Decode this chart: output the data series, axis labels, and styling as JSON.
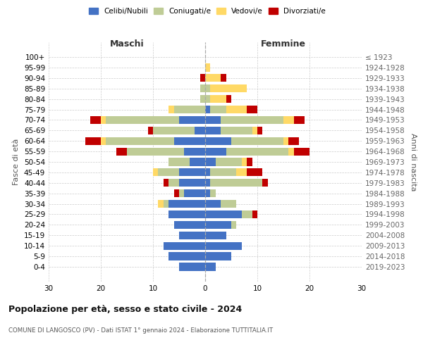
{
  "age_groups": [
    "100+",
    "95-99",
    "90-94",
    "85-89",
    "80-84",
    "75-79",
    "70-74",
    "65-69",
    "60-64",
    "55-59",
    "50-54",
    "45-49",
    "40-44",
    "35-39",
    "30-34",
    "25-29",
    "20-24",
    "15-19",
    "10-14",
    "5-9",
    "0-4"
  ],
  "birth_years": [
    "≤ 1923",
    "1924-1928",
    "1929-1933",
    "1934-1938",
    "1939-1943",
    "1944-1948",
    "1949-1953",
    "1954-1958",
    "1959-1963",
    "1964-1968",
    "1969-1973",
    "1974-1978",
    "1979-1983",
    "1984-1988",
    "1989-1993",
    "1994-1998",
    "1999-2003",
    "2004-2008",
    "2009-2013",
    "2014-2018",
    "2019-2023"
  ],
  "maschi": {
    "celibi": [
      0,
      0,
      0,
      0,
      0,
      0,
      5,
      2,
      6,
      4,
      3,
      5,
      5,
      4,
      7,
      7,
      6,
      5,
      8,
      7,
      5
    ],
    "coniugati": [
      0,
      0,
      0,
      1,
      1,
      6,
      14,
      8,
      13,
      11,
      4,
      4,
      2,
      1,
      1,
      0,
      0,
      0,
      0,
      0,
      0
    ],
    "vedovi": [
      0,
      0,
      0,
      0,
      0,
      1,
      1,
      0,
      1,
      0,
      0,
      1,
      0,
      0,
      1,
      0,
      0,
      0,
      0,
      0,
      0
    ],
    "divorziati": [
      0,
      0,
      1,
      0,
      0,
      0,
      2,
      1,
      3,
      2,
      0,
      0,
      1,
      1,
      0,
      0,
      0,
      0,
      0,
      0,
      0
    ]
  },
  "femmine": {
    "nubili": [
      0,
      0,
      0,
      0,
      0,
      1,
      3,
      3,
      5,
      4,
      2,
      1,
      1,
      1,
      3,
      7,
      5,
      4,
      7,
      5,
      2
    ],
    "coniugate": [
      0,
      0,
      0,
      1,
      1,
      3,
      12,
      6,
      10,
      12,
      5,
      5,
      10,
      1,
      3,
      2,
      1,
      0,
      0,
      0,
      0
    ],
    "vedove": [
      0,
      1,
      3,
      7,
      3,
      4,
      2,
      1,
      1,
      1,
      1,
      2,
      0,
      0,
      0,
      0,
      0,
      0,
      0,
      0,
      0
    ],
    "divorziate": [
      0,
      0,
      1,
      0,
      1,
      2,
      2,
      1,
      2,
      3,
      1,
      3,
      1,
      0,
      0,
      1,
      0,
      0,
      0,
      0,
      0
    ]
  },
  "colors": {
    "celibi": "#4472C4",
    "coniugati": "#BFCC96",
    "vedovi": "#FFD966",
    "divorziati": "#C00000"
  },
  "xlim": 30,
  "title": "Popolazione per età, sesso e stato civile - 2024",
  "subtitle": "COMUNE DI LANGOSCO (PV) - Dati ISTAT 1° gennaio 2024 - Elaborazione TUTTITALIA.IT",
  "ylabel_left": "Fasce di età",
  "ylabel_right": "Anni di nascita",
  "xlabel_left": "Maschi",
  "xlabel_right": "Femmine",
  "legend_labels": [
    "Celibi/Nubili",
    "Coniugati/e",
    "Vedovi/e",
    "Divorziati/e"
  ]
}
